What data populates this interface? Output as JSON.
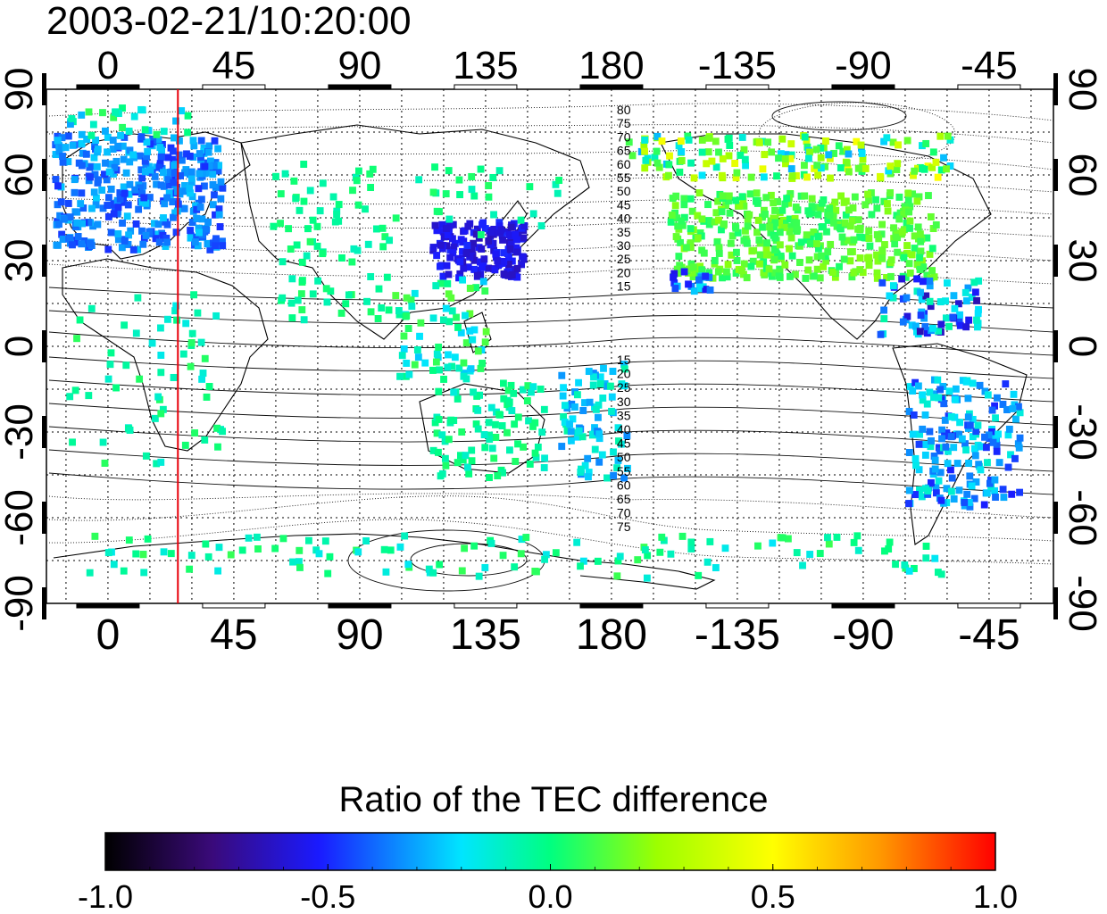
{
  "title": "2003-02-21/10:20:00",
  "lon_ticks": [
    0,
    45,
    90,
    135,
    180,
    -135,
    -90,
    -45
  ],
  "lon_tick_labels": [
    "0",
    "45",
    "90",
    "135",
    "180",
    "-135",
    "-90",
    "-45"
  ],
  "lat_ticks": [
    90,
    60,
    30,
    0,
    -30,
    -60,
    -90
  ],
  "lat_tick_labels": [
    "90",
    "60",
    "30",
    "0",
    "-30",
    "-60",
    "-90"
  ],
  "map_extent": {
    "lon_min": -22,
    "lon_max": 338,
    "lat_min": -90,
    "lat_max": 90
  },
  "contour_labels_north": [
    "80",
    "75",
    "70",
    "65",
    "60",
    "55",
    "50",
    "45",
    "40",
    "35",
    "30",
    "25",
    "20",
    "15"
  ],
  "contour_labels_south": [
    "15",
    "20",
    "25",
    "30",
    "35",
    "40",
    "45",
    "50",
    "55",
    "60",
    "65",
    "70",
    "75"
  ],
  "colorbar": {
    "title": "Ratio of the TEC difference",
    "ticks": [
      -1.0,
      -0.5,
      0.0,
      0.5,
      1.0
    ],
    "tick_labels": [
      "-1.0",
      "-0.5",
      "0.0",
      "0.5",
      "1.0"
    ],
    "stops": [
      "#000000",
      "#3a0a7a",
      "#1a1aff",
      "#00e5ff",
      "#00ff60",
      "#9dff00",
      "#ffff00",
      "#ff9900",
      "#ff0000"
    ]
  },
  "marker_line": {
    "longitude": 25,
    "color": "#e8000b"
  },
  "data_regions": [
    {
      "name": "europe-africa",
      "value": -0.35
    },
    {
      "name": "east-asia",
      "value": -0.5
    },
    {
      "name": "north-america",
      "value": 0.15
    },
    {
      "name": "south-america",
      "value": -0.3
    },
    {
      "name": "australia",
      "value": -0.1
    },
    {
      "name": "antarctic-rim",
      "value": -0.05
    }
  ]
}
